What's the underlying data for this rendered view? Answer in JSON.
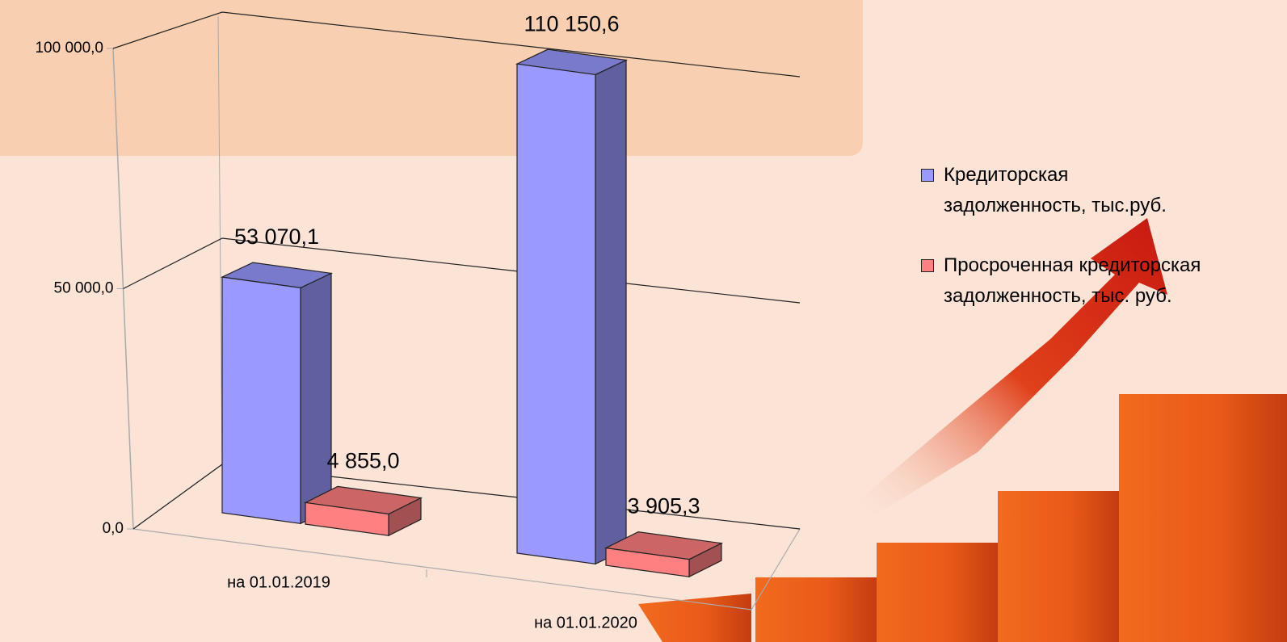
{
  "chart_data": {
    "type": "bar3d",
    "categories": [
      "на 01.01.2019",
      "на 01.01.2020"
    ],
    "series": [
      {
        "name": "Кредиторская задолженность, тыс.руб.",
        "color": "#9999ff",
        "values": [
          53070.1,
          110150.6
        ],
        "value_labels": [
          "53 070,1",
          "110 150,6"
        ]
      },
      {
        "name": "Просроченная кредиторская задолженность, тыс. руб.",
        "color": "#ff8080",
        "values": [
          4855.0,
          3905.3
        ],
        "value_labels": [
          "4 855,0",
          "3 905,3"
        ]
      }
    ],
    "ylim": [
      0,
      100000
    ],
    "yticks": [
      {
        "value": 0,
        "label": "0,0"
      },
      {
        "value": 50000,
        "label": "50 000,0"
      },
      {
        "value": 100000,
        "label": "100 000,0"
      }
    ],
    "grid": true,
    "legend": "right"
  }
}
